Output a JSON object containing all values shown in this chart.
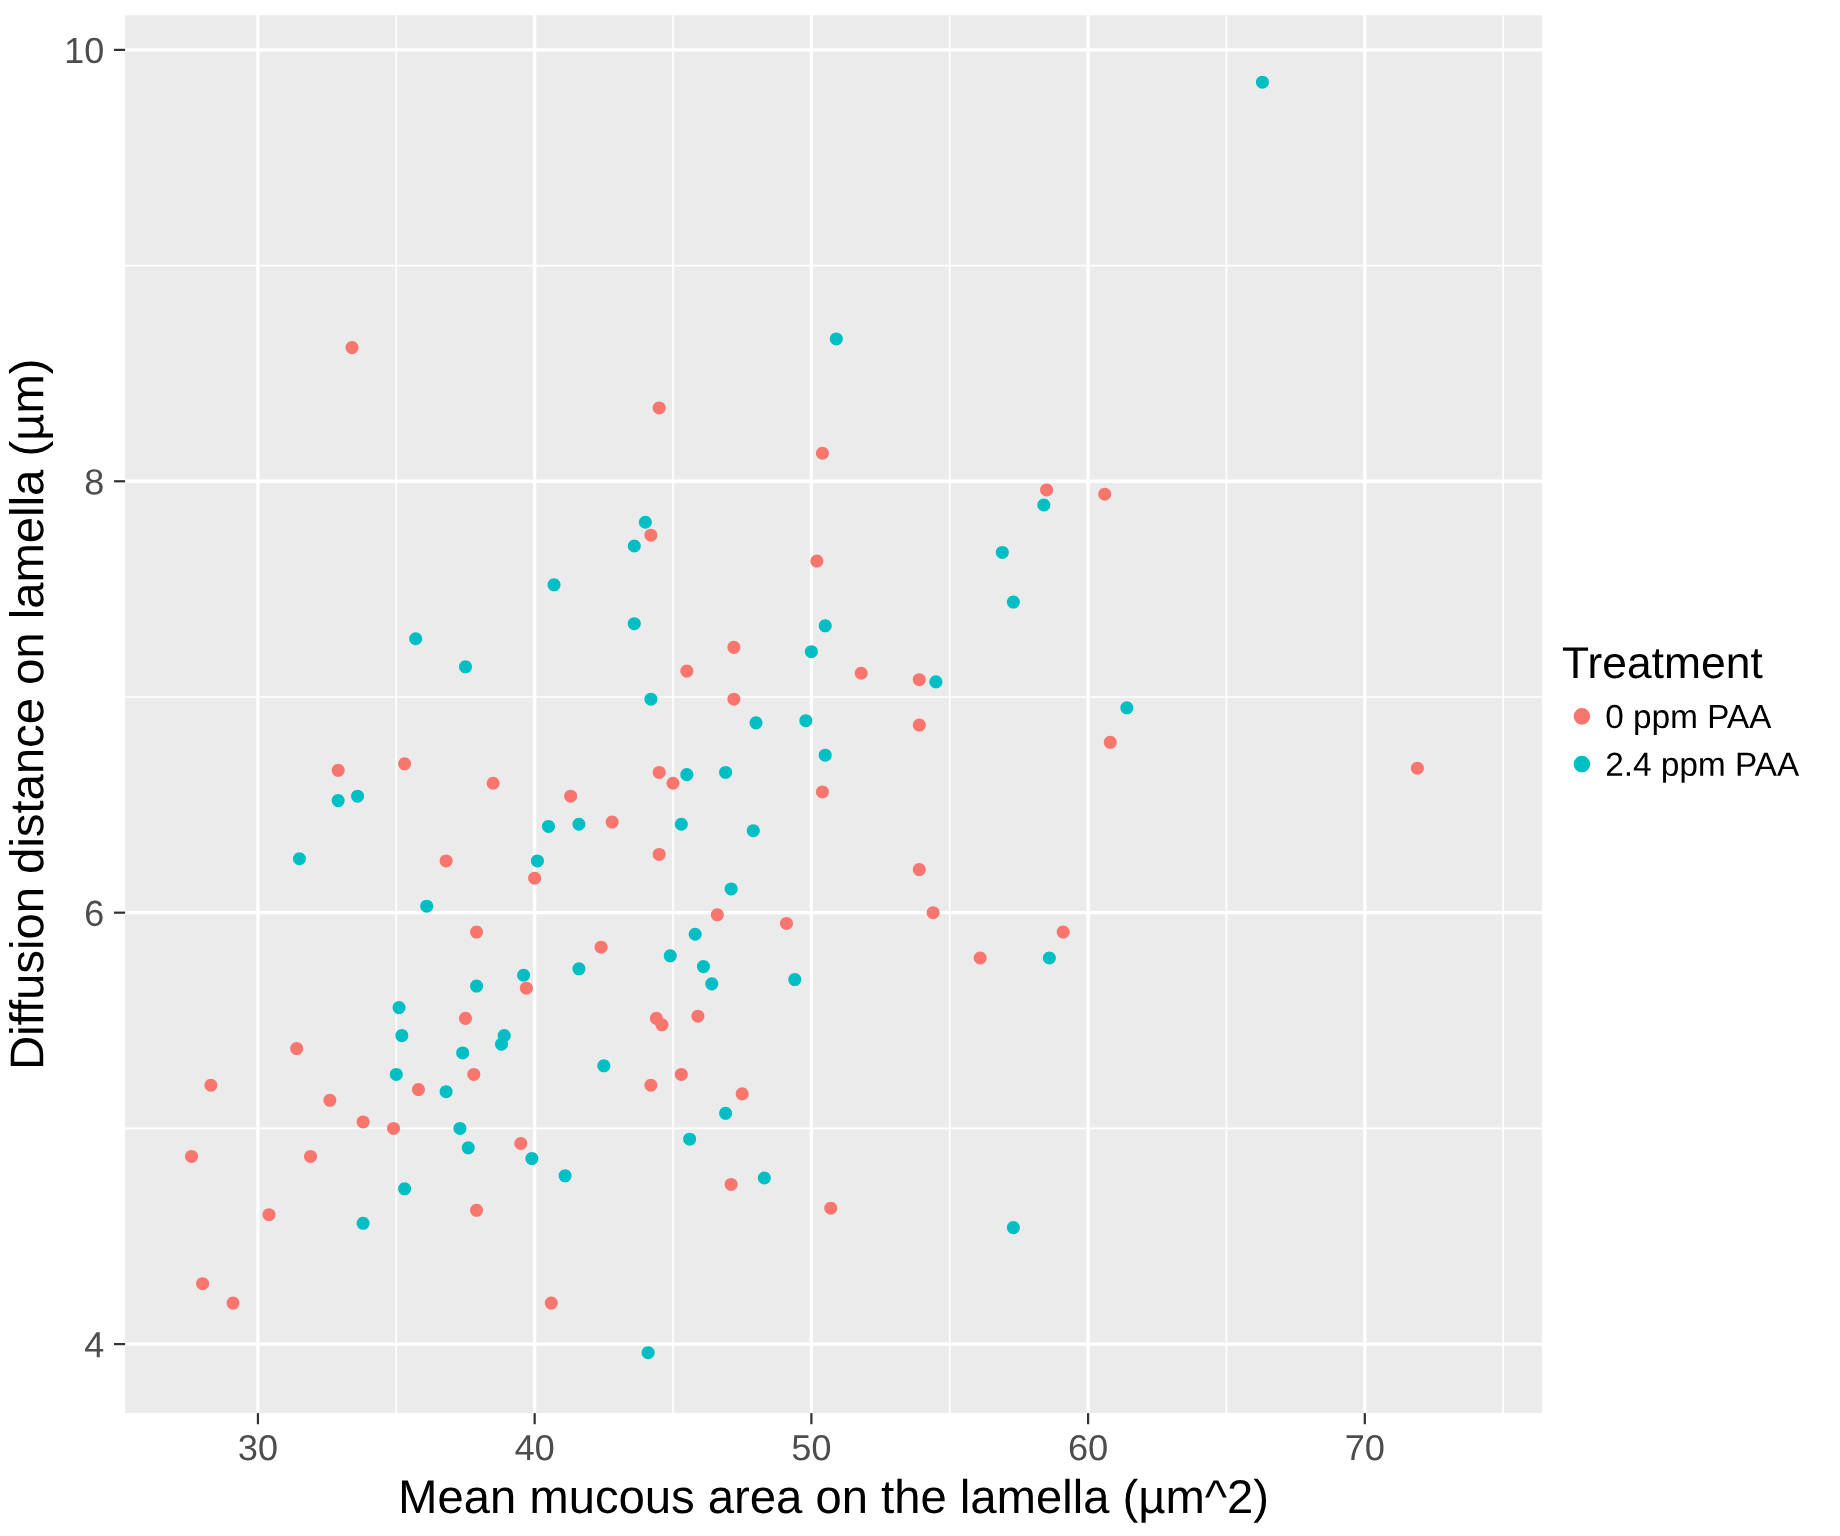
{
  "chart_data": {
    "type": "scatter",
    "xlabel": "Mean mucous area on the lamella (µm^2)",
    "ylabel": "Diffusion distance on lamella (µm)",
    "legend_title": "Treatment",
    "legend": "right",
    "grid": true,
    "marker": "circle",
    "xlim": [
      25.2,
      76.4
    ],
    "ylim": [
      3.68,
      10.16
    ],
    "xticks": [
      30,
      40,
      50,
      60,
      70
    ],
    "yticks": [
      4,
      6,
      8,
      10
    ],
    "series": [
      {
        "name": "0 ppm PAA",
        "color": "#f8766d",
        "x": [
          33.4,
          44.5,
          50.4,
          58.5,
          60.6,
          44.2,
          50.2,
          47.2,
          45.5,
          51.8,
          53.9,
          47.2,
          53.9,
          60.8,
          71.9,
          32.9,
          35.3,
          44.5,
          45.0,
          50.4,
          38.5,
          41.3,
          42.8,
          36.8,
          40.0,
          44.5,
          53.9,
          46.6,
          54.4,
          49.1,
          37.9,
          59.1,
          42.4,
          56.1,
          39.7,
          45.9,
          44.4,
          44.6,
          37.5,
          37.8,
          31.4,
          28.3,
          32.6,
          45.3,
          35.8,
          44.2,
          47.5,
          33.8,
          34.9,
          31.9,
          27.6,
          39.5,
          47.1,
          37.9,
          50.7,
          30.4,
          28.0,
          29.1,
          40.6
        ],
        "values": [
          8.62,
          8.34,
          8.13,
          7.96,
          7.94,
          7.75,
          7.63,
          7.23,
          7.12,
          7.11,
          7.08,
          6.99,
          6.87,
          6.79,
          6.67,
          6.66,
          6.69,
          6.65,
          6.6,
          6.56,
          6.6,
          6.54,
          6.42,
          6.24,
          6.16,
          6.27,
          6.2,
          5.99,
          6.0,
          5.95,
          5.91,
          5.91,
          5.84,
          5.79,
          5.65,
          5.52,
          5.51,
          5.48,
          5.51,
          5.25,
          5.37,
          5.2,
          5.13,
          5.25,
          5.18,
          5.2,
          5.16,
          5.03,
          5.0,
          4.87,
          4.87,
          4.93,
          4.74,
          4.62,
          4.63,
          4.6,
          4.28,
          4.19,
          4.19
        ]
      },
      {
        "name": "2.4 ppm PAA",
        "color": "#00bfc4",
        "x": [
          66.3,
          50.9,
          44.0,
          43.6,
          58.4,
          56.9,
          57.3,
          40.7,
          43.6,
          35.7,
          37.5,
          50.5,
          50.0,
          61.4,
          44.2,
          54.5,
          49.8,
          48.0,
          50.5,
          32.9,
          33.6,
          45.5,
          46.9,
          40.5,
          41.6,
          45.3,
          47.9,
          31.5,
          40.1,
          36.1,
          47.1,
          45.8,
          44.9,
          41.6,
          46.1,
          37.9,
          46.4,
          39.6,
          49.4,
          58.6,
          38.8,
          38.9,
          35.1,
          35.2,
          37.4,
          35.0,
          42.5,
          36.8,
          46.9,
          37.3,
          37.6,
          45.6,
          39.9,
          41.1,
          48.3,
          35.3,
          33.8,
          57.3,
          44.1
        ],
        "values": [
          9.85,
          8.66,
          7.81,
          7.7,
          7.89,
          7.67,
          7.44,
          7.52,
          7.34,
          7.27,
          7.14,
          7.33,
          7.21,
          6.95,
          6.99,
          7.07,
          6.89,
          6.88,
          6.73,
          6.52,
          6.54,
          6.64,
          6.65,
          6.4,
          6.41,
          6.41,
          6.38,
          6.25,
          6.24,
          6.03,
          6.11,
          5.9,
          5.8,
          5.74,
          5.75,
          5.66,
          5.67,
          5.71,
          5.69,
          5.79,
          5.39,
          5.43,
          5.56,
          5.43,
          5.35,
          5.25,
          5.29,
          5.17,
          5.07,
          5.0,
          4.91,
          4.95,
          4.86,
          4.78,
          4.77,
          4.72,
          4.56,
          4.54,
          3.96
        ]
      }
    ]
  }
}
